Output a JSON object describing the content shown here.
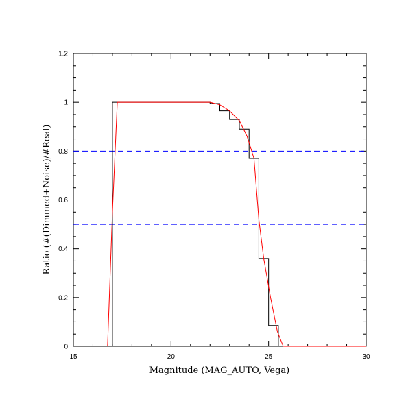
{
  "chart_data": {
    "type": "line",
    "title": "",
    "xlabel": "Magnitude (MAG_AUTO, Vega)",
    "ylabel": "Ratio (#(Dimmed+Noise)/#Real)",
    "xlim": [
      15,
      30
    ],
    "ylim": [
      0,
      1.2
    ],
    "grid": false,
    "x_ticks": [
      15,
      20,
      25,
      30
    ],
    "y_ticks": [
      0,
      0.2,
      0.4,
      0.6,
      0.8,
      1,
      1.2
    ],
    "x_tick_labels": [
      "15",
      "20",
      "25",
      "30"
    ],
    "y_tick_labels": [
      "0",
      "0.2",
      "0.4",
      "0.6",
      "0.8",
      "1",
      "1.2"
    ],
    "hlines": [
      {
        "y": 0.8,
        "color": "#0000ff",
        "style": "dashed"
      },
      {
        "y": 0.5,
        "color": "#0000ff",
        "style": "dashed"
      }
    ],
    "series": [
      {
        "style": "step",
        "color": "#000000",
        "points": [
          [
            16.75,
            0
          ],
          [
            17.0,
            0
          ],
          [
            17.0,
            1.0
          ],
          [
            22.0,
            1.0
          ],
          [
            22.0,
            0.995
          ],
          [
            22.5,
            0.995
          ],
          [
            22.5,
            0.965
          ],
          [
            23.0,
            0.965
          ],
          [
            23.0,
            0.93
          ],
          [
            23.5,
            0.93
          ],
          [
            23.5,
            0.89
          ],
          [
            24.0,
            0.89
          ],
          [
            24.0,
            0.77
          ],
          [
            24.5,
            0.77
          ],
          [
            24.5,
            0.36
          ],
          [
            25.0,
            0.36
          ],
          [
            25.0,
            0.085
          ],
          [
            25.5,
            0.085
          ],
          [
            25.5,
            0.0
          ],
          [
            30.0,
            0.0
          ]
        ]
      },
      {
        "style": "line",
        "color": "#ff0000",
        "points": [
          [
            16.75,
            0
          ],
          [
            17.0,
            0.55
          ],
          [
            17.25,
            1.0
          ],
          [
            22.0,
            1.0
          ],
          [
            22.5,
            0.99
          ],
          [
            23.0,
            0.965
          ],
          [
            23.5,
            0.925
          ],
          [
            23.9,
            0.86
          ],
          [
            24.25,
            0.77
          ],
          [
            24.5,
            0.52
          ],
          [
            24.75,
            0.36
          ],
          [
            25.1,
            0.2
          ],
          [
            25.45,
            0.06
          ],
          [
            25.75,
            0.0
          ],
          [
            30.0,
            0.0
          ]
        ]
      }
    ]
  }
}
